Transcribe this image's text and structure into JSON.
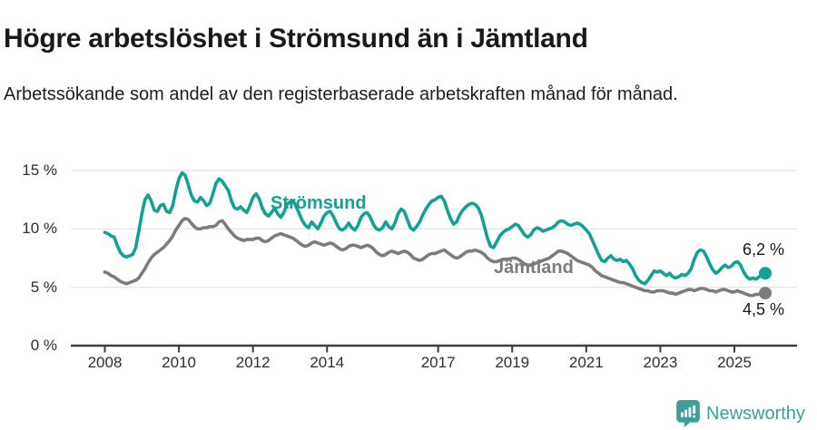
{
  "header": {
    "title": "Högre arbetslöshet i Strömsund än i Jämtland",
    "subtitle": "Arbetssökande som andel av den registerbaserade arbetskraften månad för månad."
  },
  "colors": {
    "stromsund": "#12a193",
    "jamtland": "#7c7c7c",
    "gridline": "#e3e3e3",
    "axis": "#3d3d3d",
    "text_dark": "#1a1a1a",
    "brand_teal": "#3e9e98"
  },
  "chart_data": {
    "type": "line",
    "title": "Högre arbetslöshet i Strömsund än i Jämtland",
    "subtitle": "Arbetssökande som andel av den registerbaserade arbetskraften månad för månad.",
    "unit": "%",
    "x_frequency": "monthly",
    "x_start": "2008-01",
    "x_end": "2025-11",
    "ylim": [
      0,
      15
    ],
    "grid": "horizontal",
    "legend_position": "inline-labels-on-lines",
    "yticks": [
      {
        "value": 15,
        "label": "15 %"
      },
      {
        "value": 10,
        "label": "10 %"
      },
      {
        "value": 5,
        "label": "5 %"
      },
      {
        "value": 0,
        "label": "0 %"
      }
    ],
    "xticks": [
      {
        "year": 2008,
        "label": "2008"
      },
      {
        "year": 2010,
        "label": "2010"
      },
      {
        "year": 2012,
        "label": "2012"
      },
      {
        "year": 2014,
        "label": "2014"
      },
      {
        "year": 2017,
        "label": "2017"
      },
      {
        "year": 2019,
        "label": "2019"
      },
      {
        "year": 2021,
        "label": "2021"
      },
      {
        "year": 2023,
        "label": "2023"
      },
      {
        "year": 2025,
        "label": "2025"
      }
    ],
    "series": [
      {
        "name": "Strömsund",
        "color": "#12a193",
        "end_label": "6,2 %",
        "end_value": 6.2,
        "values": [
          9.7,
          9.6,
          9.4,
          9.3,
          8.6,
          8.0,
          7.7,
          7.6,
          7.7,
          7.8,
          8.4,
          9.8,
          11.3,
          12.5,
          12.9,
          12.4,
          11.6,
          11.5,
          12.0,
          12.1,
          11.5,
          11.4,
          12.0,
          13.3,
          14.3,
          14.8,
          14.6,
          13.8,
          12.9,
          12.4,
          12.3,
          12.7,
          12.4,
          12.0,
          12.2,
          13.0,
          13.9,
          14.3,
          14.1,
          13.7,
          13.3,
          12.4,
          11.8,
          11.7,
          11.9,
          11.6,
          11.4,
          12.0,
          12.7,
          13.0,
          12.6,
          11.8,
          11.3,
          11.1,
          11.4,
          11.8,
          11.3,
          11.0,
          11.4,
          12.1,
          12.3,
          12.4,
          11.9,
          11.3,
          10.7,
          10.3,
          10.1,
          10.6,
          10.3,
          10.0,
          10.5,
          11.1,
          11.4,
          11.5,
          11.1,
          10.5,
          10.0,
          9.9,
          10.1,
          10.5,
          10.1,
          9.9,
          10.3,
          11.0,
          11.3,
          11.4,
          11.0,
          10.4,
          10.0,
          9.9,
          10.1,
          10.6,
          10.2,
          10.0,
          10.5,
          11.3,
          11.7,
          11.5,
          10.8,
          10.1,
          9.9,
          10.2,
          10.6,
          11.2,
          11.7,
          12.1,
          12.4,
          12.5,
          12.7,
          12.8,
          12.4,
          11.6,
          10.9,
          10.4,
          10.6,
          11.2,
          11.6,
          11.9,
          12.1,
          12.2,
          12.1,
          11.8,
          11.2,
          10.2,
          9.2,
          8.5,
          8.4,
          8.9,
          9.4,
          9.7,
          9.9,
          10.0,
          10.2,
          10.4,
          10.3,
          9.9,
          9.5,
          9.3,
          9.5,
          9.9,
          10.1,
          10.0,
          9.8,
          9.9,
          10.0,
          10.1,
          10.3,
          10.6,
          10.7,
          10.6,
          10.4,
          10.3,
          10.4,
          10.5,
          10.4,
          10.2,
          9.9,
          9.6,
          9.0,
          8.4,
          7.8,
          7.3,
          7.2,
          7.5,
          7.7,
          7.4,
          7.3,
          7.4,
          7.2,
          7.3,
          7.0,
          6.6,
          6.0,
          5.6,
          5.4,
          5.3,
          5.6,
          6.0,
          6.4,
          6.3,
          6.4,
          6.2,
          6.0,
          6.2,
          5.9,
          5.8,
          5.9,
          6.1,
          6.0,
          6.2,
          6.6,
          7.4,
          8.0,
          8.2,
          8.1,
          7.6,
          7.0,
          6.5,
          6.2,
          6.4,
          6.7,
          6.9,
          6.7,
          6.8,
          7.1,
          7.2,
          6.9,
          6.3,
          5.9,
          5.7,
          5.8,
          5.7,
          5.9,
          6.1,
          6.2
        ]
      },
      {
        "name": "Jämtland",
        "color": "#7c7c7c",
        "end_label": "4,5 %",
        "end_value": 4.5,
        "values": [
          6.3,
          6.2,
          6.0,
          5.9,
          5.7,
          5.5,
          5.4,
          5.3,
          5.4,
          5.5,
          5.6,
          5.8,
          6.2,
          6.6,
          7.1,
          7.5,
          7.8,
          8.0,
          8.2,
          8.4,
          8.7,
          9.0,
          9.4,
          9.9,
          10.3,
          10.7,
          10.9,
          10.8,
          10.5,
          10.2,
          10.0,
          10.0,
          10.1,
          10.1,
          10.2,
          10.2,
          10.3,
          10.6,
          10.7,
          10.4,
          10.0,
          9.7,
          9.4,
          9.2,
          9.1,
          9.0,
          9.1,
          9.1,
          9.1,
          9.2,
          9.2,
          9.0,
          8.9,
          9.0,
          9.2,
          9.4,
          9.5,
          9.6,
          9.5,
          9.4,
          9.3,
          9.2,
          9.0,
          8.8,
          8.6,
          8.5,
          8.6,
          8.8,
          8.9,
          8.8,
          8.7,
          8.6,
          8.7,
          8.8,
          8.7,
          8.5,
          8.3,
          8.2,
          8.3,
          8.5,
          8.6,
          8.6,
          8.5,
          8.4,
          8.5,
          8.6,
          8.5,
          8.3,
          8.0,
          7.8,
          7.7,
          7.8,
          8.0,
          8.1,
          8.0,
          7.9,
          8.0,
          8.1,
          8.0,
          7.8,
          7.5,
          7.4,
          7.3,
          7.4,
          7.6,
          7.8,
          7.9,
          7.9,
          8.0,
          8.1,
          8.2,
          8.0,
          7.8,
          7.6,
          7.5,
          7.6,
          7.8,
          8.0,
          8.1,
          8.1,
          8.2,
          8.1,
          8.0,
          7.8,
          7.5,
          7.3,
          7.2,
          7.2,
          7.3,
          7.4,
          7.4,
          7.4,
          7.5,
          7.5,
          7.4,
          7.2,
          7.0,
          6.9,
          6.9,
          7.0,
          7.1,
          7.2,
          7.3,
          7.4,
          7.5,
          7.7,
          7.9,
          8.1,
          8.1,
          8.0,
          7.9,
          7.7,
          7.5,
          7.3,
          7.2,
          7.1,
          7.0,
          6.9,
          6.7,
          6.4,
          6.2,
          6.0,
          5.9,
          5.8,
          5.7,
          5.6,
          5.5,
          5.4,
          5.4,
          5.3,
          5.2,
          5.1,
          5.0,
          4.9,
          4.8,
          4.7,
          4.7,
          4.6,
          4.6,
          4.7,
          4.7,
          4.7,
          4.6,
          4.5,
          4.5,
          4.4,
          4.5,
          4.6,
          4.7,
          4.8,
          4.8,
          4.7,
          4.8,
          4.9,
          4.9,
          4.8,
          4.7,
          4.7,
          4.6,
          4.7,
          4.8,
          4.8,
          4.7,
          4.6,
          4.6,
          4.7,
          4.6,
          4.5,
          4.4,
          4.3,
          4.3,
          4.4,
          4.4,
          4.5,
          4.5
        ]
      }
    ]
  },
  "footer": {
    "brand": "Newsworthy"
  }
}
